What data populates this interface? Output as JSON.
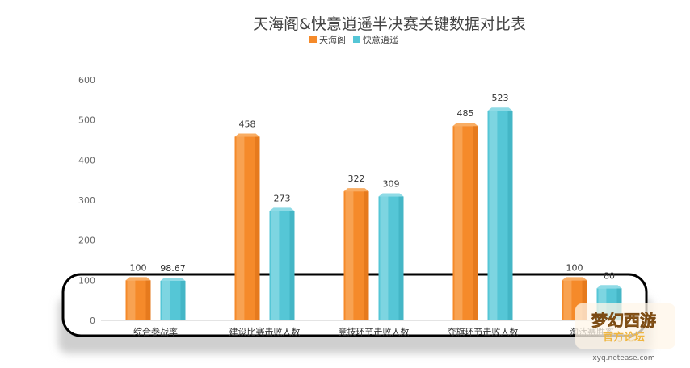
{
  "chart_data": {
    "type": "bar",
    "title": "天海阁&快意逍遥半决赛关键数据对比表",
    "categories": [
      "综合参战率",
      "建设比赛击败人数",
      "竞技环节击败人数",
      "夺旗环节击败人数",
      "淘汰赛胜率"
    ],
    "series": [
      {
        "name": "天海阁",
        "values": [
          100,
          458,
          322,
          485,
          100
        ],
        "labels": [
          "100",
          "458",
          "322",
          "485",
          "100"
        ]
      },
      {
        "name": "快意逍遥",
        "values": [
          98.67,
          273,
          309,
          523,
          80
        ],
        "labels": [
          "98.67",
          "273",
          "309",
          "523",
          "80"
        ]
      }
    ],
    "ylim": [
      0,
      600
    ],
    "yticks": [
      "0",
      "100",
      "200",
      "300",
      "400",
      "500",
      "600"
    ],
    "grid": false,
    "legend": "top-center"
  },
  "colors": {
    "series": [
      "#f58a2a",
      "#55c6d6"
    ],
    "series_light": [
      "#f9ad63",
      "#8fdbe6"
    ],
    "series_dark": [
      "#d96e12",
      "#36a9ba"
    ]
  },
  "watermark": {
    "text": "xyq.netease.com",
    "logo_text": "梦幻西游 官方论坛"
  }
}
